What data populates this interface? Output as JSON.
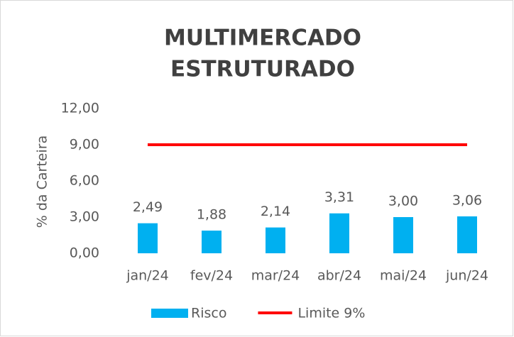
{
  "chart_data": {
    "type": "bar",
    "title": [
      "MULTIMERCADO",
      "ESTRUTURADO"
    ],
    "y_label": "% da Carteira",
    "categories": [
      "jan/24",
      "fev/24",
      "mar/24",
      "abr/24",
      "mai/24",
      "jun/24"
    ],
    "series": [
      {
        "name": "Risco",
        "type": "bar",
        "color": "#00b0f0",
        "values": [
          2.49,
          1.88,
          2.14,
          3.31,
          3.0,
          3.06
        ],
        "value_labels": [
          "2,49",
          "1,88",
          "2,14",
          "3,31",
          "3,00",
          "3,06"
        ]
      },
      {
        "name": "Limite 9%",
        "type": "line",
        "color": "#ff0000",
        "values": [
          9,
          9,
          9,
          9,
          9,
          9
        ]
      }
    ],
    "ylim": [
      0,
      12
    ],
    "yticks": [
      {
        "value": 0,
        "label": "0,00"
      },
      {
        "value": 3,
        "label": "3,00"
      },
      {
        "value": 6,
        "label": "6,00"
      },
      {
        "value": 9,
        "label": "9,00"
      },
      {
        "value": 12,
        "label": "12,00"
      }
    ],
    "grid": false,
    "legend": "bottom"
  }
}
